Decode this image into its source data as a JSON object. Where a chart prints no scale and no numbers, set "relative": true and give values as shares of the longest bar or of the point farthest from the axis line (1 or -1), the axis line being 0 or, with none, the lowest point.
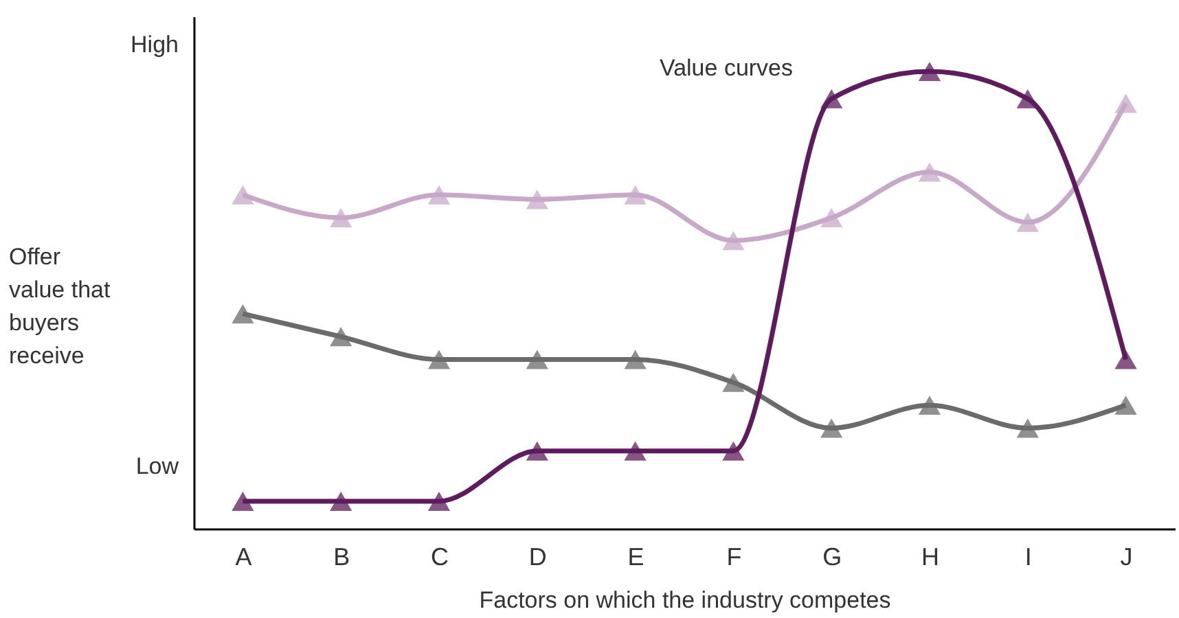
{
  "chart_data": {
    "type": "line",
    "xlabel": "Factors on which the industry competes",
    "ylabel": "Offer value that buyers receive",
    "categories": [
      "A",
      "B",
      "C",
      "D",
      "E",
      "F",
      "G",
      "H",
      "I",
      "J"
    ],
    "relative": true,
    "marker": "triangle",
    "grid": false,
    "legend": false,
    "annotations": [
      "Value curves",
      "High",
      "Low"
    ],
    "series": [
      {
        "color": "#c8a8c8",
        "values": [
          0.73,
          0.68,
          0.73,
          0.72,
          0.73,
          0.63,
          0.68,
          0.78,
          0.67,
          0.93
        ]
      },
      {
        "color": "#6b6b6b",
        "values": [
          0.47,
          0.42,
          0.37,
          0.37,
          0.37,
          0.32,
          0.22,
          0.27,
          0.22,
          0.27
        ]
      },
      {
        "color": "#5e1c5e",
        "values": [
          0.06,
          0.06,
          0.06,
          0.17,
          0.17,
          0.17,
          0.94,
          1,
          0.94,
          0.37
        ]
      }
    ]
  }
}
